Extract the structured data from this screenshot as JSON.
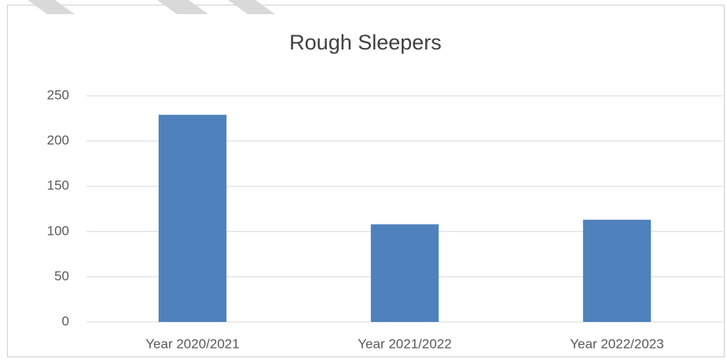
{
  "chart_data": {
    "type": "bar",
    "title": "Rough Sleepers",
    "categories": [
      "Year 2020/2021",
      "Year 2021/2022",
      "Year 2022/2023"
    ],
    "values": [
      229,
      108,
      113
    ],
    "color": "#4f81bd",
    "ylim": [
      0,
      250
    ],
    "yticks": [
      0,
      50,
      100,
      150,
      200,
      250
    ],
    "grid": true
  }
}
